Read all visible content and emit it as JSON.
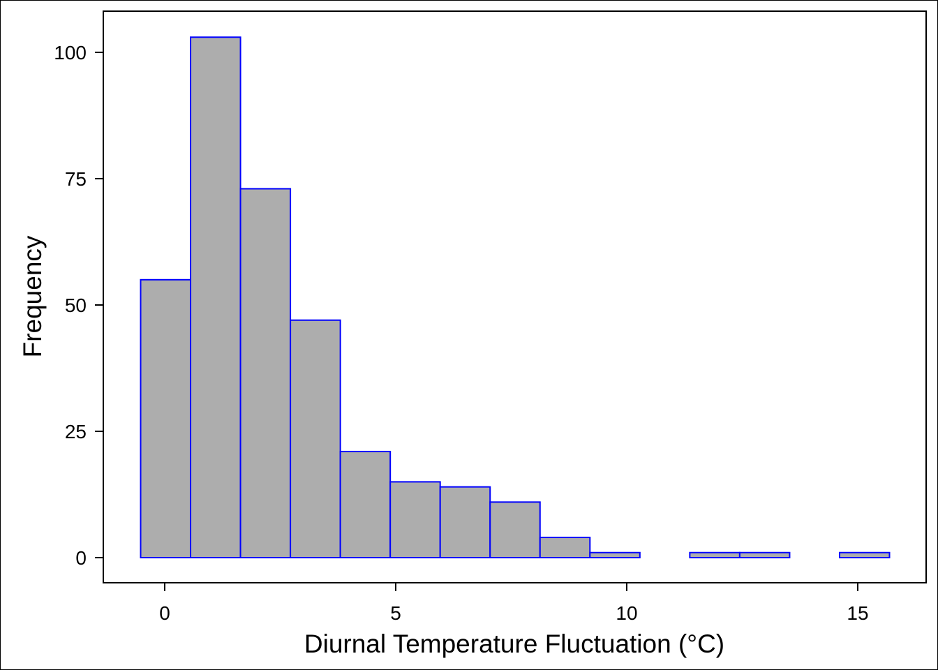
{
  "chart_data": {
    "type": "bar",
    "subtype": "histogram",
    "title": "",
    "xlabel": "Diurnal Temperature Fluctuation (°C)",
    "ylabel": "Frequency",
    "xlim": [
      -1.0,
      16.8
    ],
    "ylim": [
      -5,
      108
    ],
    "x_ticks": [
      0,
      5,
      10,
      15
    ],
    "y_ticks": [
      0,
      25,
      50,
      75,
      100
    ],
    "bin_start": -0.54,
    "bin_width": 1.08,
    "bins": [
      {
        "x0": -0.54,
        "x1": 0.54,
        "count": 55
      },
      {
        "x0": 0.54,
        "x1": 1.62,
        "count": 103
      },
      {
        "x0": 1.62,
        "x1": 2.7,
        "count": 73
      },
      {
        "x0": 2.7,
        "x1": 3.78,
        "count": 47
      },
      {
        "x0": 3.78,
        "x1": 4.86,
        "count": 21
      },
      {
        "x0": 4.86,
        "x1": 5.94,
        "count": 15
      },
      {
        "x0": 5.94,
        "x1": 7.02,
        "count": 14
      },
      {
        "x0": 7.02,
        "x1": 8.1,
        "count": 11
      },
      {
        "x0": 8.1,
        "x1": 9.18,
        "count": 4
      },
      {
        "x0": 9.18,
        "x1": 10.26,
        "count": 1
      },
      {
        "x0": 10.26,
        "x1": 11.34,
        "count": 0
      },
      {
        "x0": 11.34,
        "x1": 12.42,
        "count": 1
      },
      {
        "x0": 12.42,
        "x1": 13.5,
        "count": 1
      },
      {
        "x0": 13.5,
        "x1": 14.58,
        "count": 0
      },
      {
        "x0": 14.58,
        "x1": 15.66,
        "count": 1
      }
    ],
    "colors": {
      "bar_fill": "#adadad",
      "bar_stroke": "#0000ff",
      "axis": "#000000"
    },
    "grid": false,
    "legend": "none"
  }
}
